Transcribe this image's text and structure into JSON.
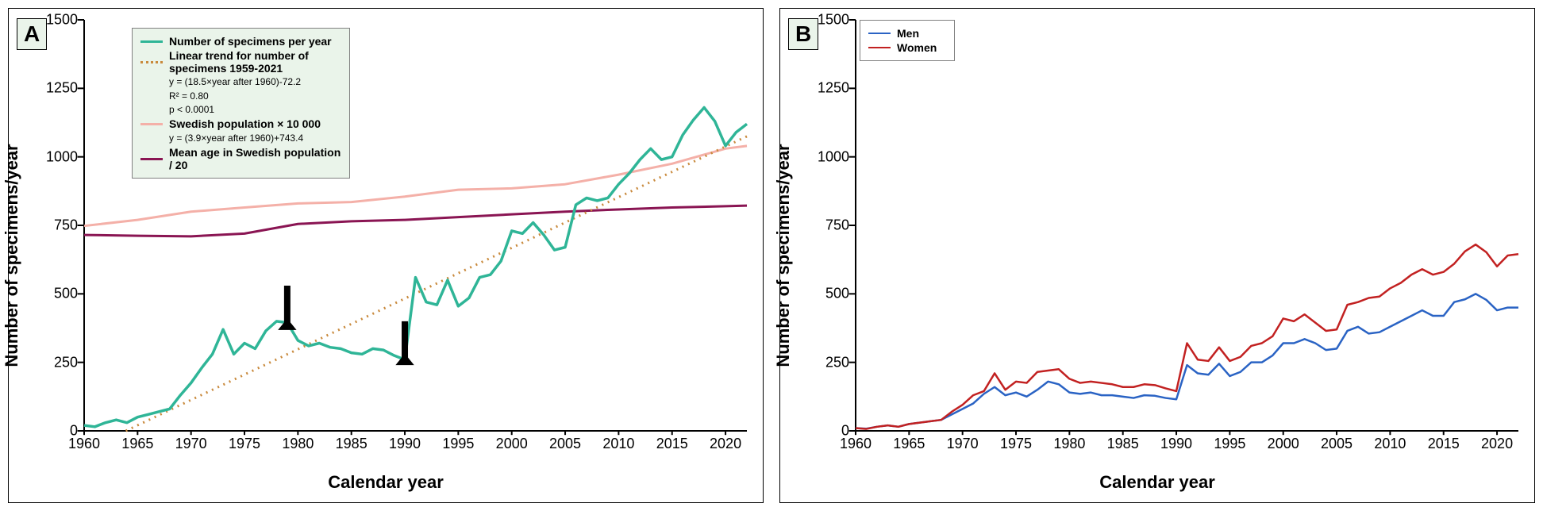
{
  "panelA": {
    "label": "A",
    "y_axis_label": "Number of specimens/year",
    "x_axis_label": "Calendar year",
    "xlim": [
      1960,
      2022
    ],
    "ylim": [
      0,
      1500
    ],
    "x_ticks": [
      1960,
      1965,
      1970,
      1975,
      1980,
      1985,
      1990,
      1995,
      2000,
      2005,
      2010,
      2015,
      2020
    ],
    "y_ticks": [
      0,
      250,
      500,
      750,
      1000,
      1250,
      1500
    ],
    "tick_fontsize": 18,
    "label_fontsize": 22,
    "panel_label_fontsize": 28,
    "background_color": "#ffffff",
    "border_color": "#000000",
    "grid": false,
    "legend": {
      "bg_color": "#eaf4ea",
      "border_color": "#808080",
      "items": [
        {
          "label": "Number of specimens per year",
          "color": "#2fb597",
          "dash": "solid",
          "width": 3
        },
        {
          "label": "Linear trend for number of specimens 1959-2021",
          "color": "#c98a3d",
          "dash": "dotted",
          "width": 3,
          "equations": [
            "y = (18.5×year after 1960)-72.2",
            "R² = 0.80",
            "p < 0.0001"
          ]
        },
        {
          "label": "Swedish population × 10 000",
          "color": "#f4b0a8",
          "dash": "solid",
          "width": 3,
          "equations": [
            "y = (3.9×year after 1960)+743.4"
          ]
        },
        {
          "label": "Mean age in Swedish population / 20",
          "color": "#8a1553",
          "dash": "solid",
          "width": 3
        }
      ]
    },
    "series": {
      "specimens": {
        "color": "#2fb597",
        "width": 3.5,
        "dash": "solid",
        "x": [
          1960,
          1961,
          1962,
          1963,
          1964,
          1965,
          1966,
          1967,
          1968,
          1969,
          1970,
          1971,
          1972,
          1973,
          1974,
          1975,
          1976,
          1977,
          1978,
          1979,
          1980,
          1981,
          1982,
          1983,
          1984,
          1985,
          1986,
          1987,
          1988,
          1989,
          1990,
          1991,
          1992,
          1993,
          1994,
          1995,
          1996,
          1997,
          1998,
          1999,
          2000,
          2001,
          2002,
          2003,
          2004,
          2005,
          2006,
          2007,
          2008,
          2009,
          2010,
          2011,
          2012,
          2013,
          2014,
          2015,
          2016,
          2017,
          2018,
          2019,
          2020,
          2021,
          2022
        ],
        "y": [
          20,
          15,
          30,
          40,
          30,
          50,
          60,
          70,
          80,
          130,
          175,
          230,
          280,
          370,
          280,
          320,
          300,
          365,
          400,
          395,
          330,
          310,
          320,
          305,
          300,
          285,
          280,
          300,
          295,
          275,
          260,
          560,
          470,
          460,
          550,
          455,
          485,
          560,
          570,
          620,
          730,
          720,
          760,
          715,
          660,
          670,
          825,
          850,
          840,
          850,
          900,
          940,
          990,
          1030,
          990,
          1000,
          1080,
          1135,
          1180,
          1130,
          1040,
          1090,
          1120
        ]
      },
      "trend": {
        "color": "#c98a3d",
        "width": 3,
        "dash": "dotted",
        "x": [
          1963.9,
          2022
        ],
        "y": [
          0,
          1074.8
        ]
      },
      "population": {
        "color": "#f4b0a8",
        "width": 3,
        "dash": "solid",
        "x": [
          1960,
          1965,
          1970,
          1975,
          1980,
          1985,
          1990,
          1995,
          2000,
          2005,
          2010,
          2015,
          2020,
          2022
        ],
        "y": [
          748,
          770,
          800,
          815,
          830,
          835,
          855,
          880,
          885,
          900,
          935,
          975,
          1030,
          1040
        ]
      },
      "mean_age": {
        "color": "#8a1553",
        "width": 3,
        "dash": "solid",
        "x": [
          1960,
          1965,
          1970,
          1975,
          1980,
          1985,
          1990,
          1995,
          2000,
          2005,
          2010,
          2015,
          2020,
          2022
        ],
        "y": [
          715,
          712,
          710,
          720,
          755,
          765,
          770,
          780,
          790,
          800,
          808,
          815,
          820,
          822
        ]
      }
    },
    "arrows": [
      {
        "x": 1979,
        "y_tip": 410,
        "y_tail": 530,
        "color": "#000000",
        "width": 8
      },
      {
        "x": 1990,
        "y_tip": 282,
        "y_tail": 400,
        "color": "#000000",
        "width": 8
      }
    ]
  },
  "panelB": {
    "label": "B",
    "y_axis_label": "Number of specimens/year",
    "x_axis_label": "Calendar year",
    "xlim": [
      1960,
      2022
    ],
    "ylim": [
      0,
      1500
    ],
    "x_ticks": [
      1960,
      1965,
      1970,
      1975,
      1980,
      1985,
      1990,
      1995,
      2000,
      2005,
      2010,
      2015,
      2020
    ],
    "y_ticks": [
      0,
      250,
      500,
      750,
      1000,
      1250,
      1500
    ],
    "tick_fontsize": 18,
    "label_fontsize": 22,
    "panel_label_fontsize": 28,
    "background_color": "#ffffff",
    "border_color": "#000000",
    "grid": false,
    "legend": {
      "bg_color": "#ffffff",
      "border_color": "#808080",
      "items": [
        {
          "label": "Men",
          "color": "#2a63c4",
          "dash": "solid",
          "width": 2.5
        },
        {
          "label": "Women",
          "color": "#c22121",
          "dash": "solid",
          "width": 2.5
        }
      ]
    },
    "series": {
      "men": {
        "color": "#2a63c4",
        "width": 2.5,
        "dash": "solid",
        "x": [
          1960,
          1961,
          1962,
          1963,
          1964,
          1965,
          1966,
          1967,
          1968,
          1969,
          1970,
          1971,
          1972,
          1973,
          1974,
          1975,
          1976,
          1977,
          1978,
          1979,
          1980,
          1981,
          1982,
          1983,
          1984,
          1985,
          1986,
          1987,
          1988,
          1989,
          1990,
          1991,
          1992,
          1993,
          1994,
          1995,
          1996,
          1997,
          1998,
          1999,
          2000,
          2001,
          2002,
          2003,
          2004,
          2005,
          2006,
          2007,
          2008,
          2009,
          2010,
          2011,
          2012,
          2013,
          2014,
          2015,
          2016,
          2017,
          2018,
          2019,
          2020,
          2021,
          2022
        ],
        "y": [
          10,
          8,
          15,
          20,
          15,
          25,
          30,
          35,
          40,
          60,
          80,
          100,
          135,
          160,
          130,
          140,
          125,
          150,
          180,
          170,
          140,
          135,
          140,
          130,
          130,
          125,
          120,
          130,
          128,
          120,
          115,
          240,
          210,
          205,
          245,
          200,
          215,
          250,
          250,
          275,
          320,
          320,
          335,
          320,
          295,
          300,
          365,
          380,
          355,
          360,
          380,
          400,
          420,
          440,
          420,
          420,
          470,
          480,
          500,
          478,
          440,
          450,
          450
        ]
      },
      "women": {
        "color": "#c22121",
        "width": 2.5,
        "dash": "solid",
        "x": [
          1960,
          1961,
          1962,
          1963,
          1964,
          1965,
          1966,
          1967,
          1968,
          1969,
          1970,
          1971,
          1972,
          1973,
          1974,
          1975,
          1976,
          1977,
          1978,
          1979,
          1980,
          1981,
          1982,
          1983,
          1984,
          1985,
          1986,
          1987,
          1988,
          1989,
          1990,
          1991,
          1992,
          1993,
          1994,
          1995,
          1996,
          1997,
          1998,
          1999,
          2000,
          2001,
          2002,
          2003,
          2004,
          2005,
          2006,
          2007,
          2008,
          2009,
          2010,
          2011,
          2012,
          2013,
          2014,
          2015,
          2016,
          2017,
          2018,
          2019,
          2020,
          2021,
          2022
        ],
        "y": [
          10,
          7,
          15,
          20,
          15,
          25,
          30,
          35,
          40,
          70,
          95,
          130,
          145,
          210,
          150,
          180,
          175,
          215,
          220,
          225,
          190,
          175,
          180,
          175,
          170,
          160,
          160,
          170,
          167,
          155,
          145,
          320,
          260,
          255,
          305,
          255,
          270,
          310,
          320,
          345,
          410,
          400,
          425,
          395,
          365,
          370,
          460,
          470,
          485,
          490,
          520,
          540,
          570,
          590,
          570,
          580,
          610,
          655,
          680,
          652,
          600,
          640,
          645
        ]
      }
    }
  }
}
